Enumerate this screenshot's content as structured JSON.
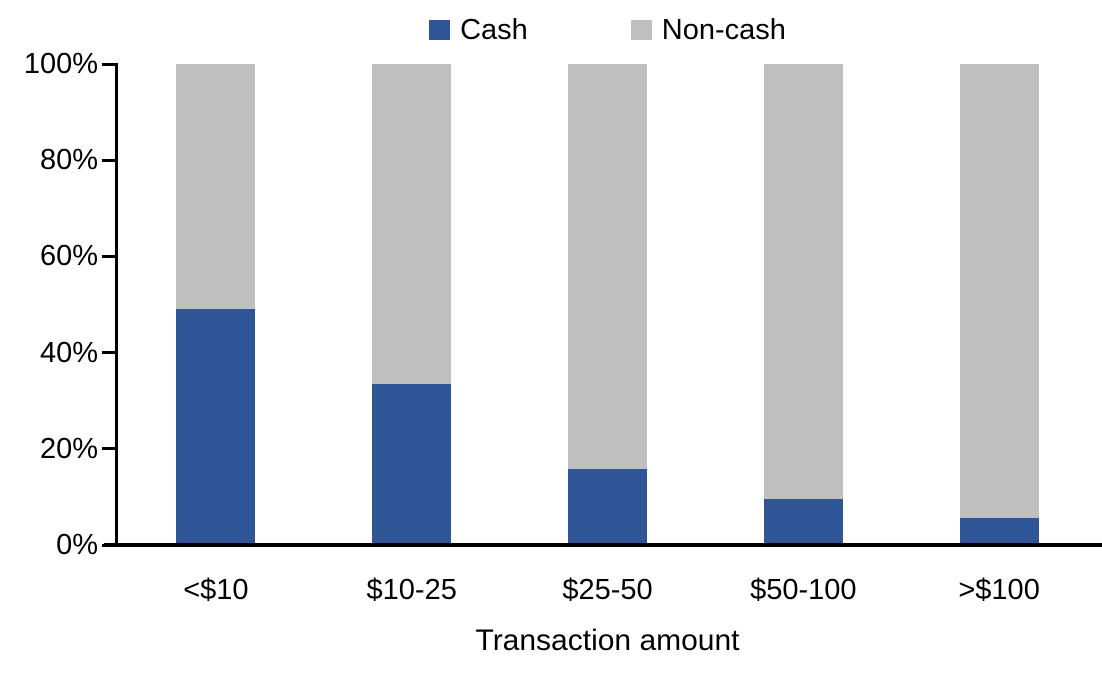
{
  "chart_data": {
    "type": "bar",
    "subtype": "stacked-100-percent",
    "title": "",
    "xlabel": "Transaction amount",
    "ylabel": "",
    "categories": [
      "<$10",
      "$10-25",
      "$25-50",
      "$50-100",
      ">$100"
    ],
    "series": [
      {
        "name": "Cash",
        "color": "#2F5597",
        "values": [
          49,
          33.5,
          15.7,
          9.6,
          5.6
        ]
      },
      {
        "name": "Non-cash",
        "color": "#BFBFBF",
        "values": [
          51,
          66.5,
          84.3,
          90.4,
          94.4
        ]
      }
    ],
    "ylim": [
      0,
      100
    ],
    "yticks": [
      "0%",
      "20%",
      "40%",
      "60%",
      "80%",
      "100%"
    ],
    "legend_position": "top",
    "grid": false,
    "axis_color": "#000000",
    "background_color": "#FFFFFF"
  }
}
